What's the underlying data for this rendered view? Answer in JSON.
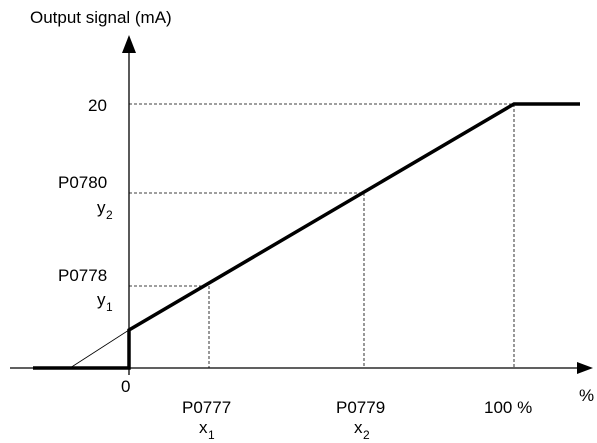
{
  "y_axis_title": "Output signal (mA)",
  "x_axis_unit": "%",
  "origin_label": "0",
  "y_marks": [
    {
      "value_label": "20",
      "param": "",
      "var": "",
      "sub": ""
    },
    {
      "value_label": "",
      "param": "P0780",
      "var": "y",
      "sub": "2"
    },
    {
      "value_label": "",
      "param": "P0778",
      "var": "y",
      "sub": "1"
    }
  ],
  "x_marks": [
    {
      "param": "P0777",
      "var": "x",
      "sub": "1",
      "value_label": ""
    },
    {
      "param": "P0779",
      "var": "x",
      "sub": "2",
      "value_label": ""
    },
    {
      "param": "",
      "var": "",
      "sub": "",
      "value_label": "100 %"
    }
  ]
}
